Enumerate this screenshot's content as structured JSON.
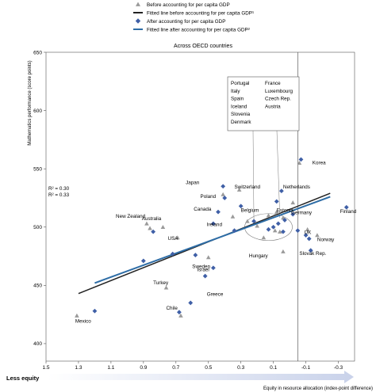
{
  "chart_data": {
    "type": "scatter",
    "title": "Across OECD countries",
    "xlabel": "Equity in resource allocation (index-point difference)",
    "ylabel": "Mathematics performance (score points)",
    "x_direction_label": "Less equity",
    "xlim": [
      1.5,
      -0.4
    ],
    "ylim": [
      385,
      650
    ],
    "x_ticks": [
      "1.5",
      "1.3",
      "1.1",
      "0.9",
      "0.7",
      "0.5",
      "0.3",
      "0.1",
      "-0.1",
      "-0.3"
    ],
    "y_ticks": [
      "400",
      "450",
      "500",
      "550",
      "600",
      "650"
    ],
    "grid": false,
    "legend": {
      "placement": "top-left",
      "entries": [
        {
          "label": "Before accounting for per capita GDP",
          "marker": "triangle"
        },
        {
          "label": "Fitted line before accounting for per capita GDP¹",
          "marker": "line-dark"
        },
        {
          "label": "After accounting for per capita GDP",
          "marker": "diamond"
        },
        {
          "label": "Fitted line after accounting for per capita GDP²",
          "marker": "line-blue"
        }
      ]
    },
    "r_squared": [
      "R² = 0.30",
      "R² = 0.33"
    ],
    "reference_lines": {
      "x": -0.05
    },
    "colors": {
      "before": "#9a9a9a",
      "after": "#3f5fa6",
      "fit_before": "#222222",
      "fit_after": "#2e6da6",
      "arrow": "#c6cfe6"
    },
    "series": [
      {
        "name": "Before accounting for per capita GDP",
        "marker": "triangle",
        "points": [
          {
            "x": 1.31,
            "y": 424
          },
          {
            "x": 0.67,
            "y": 424
          },
          {
            "x": 0.76,
            "y": 448
          },
          {
            "x": 0.5,
            "y": 474
          },
          {
            "x": 0.41,
            "y": 528
          },
          {
            "x": 0.88,
            "y": 503
          },
          {
            "x": 0.35,
            "y": 509
          },
          {
            "x": 0.31,
            "y": 532
          },
          {
            "x": 0.26,
            "y": 505
          },
          {
            "x": 0.2,
            "y": 501
          },
          {
            "x": 0.13,
            "y": 510
          },
          {
            "x": 0.09,
            "y": 497
          },
          {
            "x": 0.08,
            "y": 513
          },
          {
            "x": 0.06,
            "y": 496
          },
          {
            "x": 0.04,
            "y": 508
          },
          {
            "x": -0.02,
            "y": 521
          },
          {
            "x": -0.06,
            "y": 555
          },
          {
            "x": 0.04,
            "y": 479
          },
          {
            "x": 0.69,
            "y": 491
          },
          {
            "x": 0.78,
            "y": 500
          },
          {
            "x": 0.86,
            "y": 499
          },
          {
            "x": -0.11,
            "y": 498
          },
          {
            "x": -0.17,
            "y": 493
          },
          {
            "x": 0.16,
            "y": 491
          }
        ]
      },
      {
        "name": "After accounting for per capita GDP",
        "marker": "diamond",
        "points": [
          {
            "x": 1.2,
            "y": 428
          },
          {
            "x": 0.61,
            "y": 435
          },
          {
            "x": 0.68,
            "y": 427
          },
          {
            "x": 0.52,
            "y": 458
          },
          {
            "x": 0.47,
            "y": 465
          },
          {
            "x": 0.41,
            "y": 535
          },
          {
            "x": 0.84,
            "y": 496
          },
          {
            "x": 0.9,
            "y": 471
          },
          {
            "x": 0.72,
            "y": 477
          },
          {
            "x": 0.4,
            "y": 525
          },
          {
            "x": 0.44,
            "y": 513
          },
          {
            "x": 0.47,
            "y": 503
          },
          {
            "x": 0.3,
            "y": 518
          },
          {
            "x": 0.22,
            "y": 505
          },
          {
            "x": 0.08,
            "y": 522
          },
          {
            "x": 0.05,
            "y": 531
          },
          {
            "x": -0.07,
            "y": 558
          },
          {
            "x": 0.13,
            "y": 498
          },
          {
            "x": 0.1,
            "y": 500
          },
          {
            "x": 0.07,
            "y": 503
          },
          {
            "x": 0.03,
            "y": 506
          },
          {
            "x": -0.02,
            "y": 511
          },
          {
            "x": -0.35,
            "y": 517
          },
          {
            "x": -0.1,
            "y": 493
          },
          {
            "x": -0.12,
            "y": 490
          },
          {
            "x": -0.13,
            "y": 480
          },
          {
            "x": 0.34,
            "y": 497
          },
          {
            "x": 0.04,
            "y": 496
          },
          {
            "x": -0.05,
            "y": 497
          },
          {
            "x": 0.58,
            "y": 476
          }
        ]
      }
    ],
    "fitted_lines": [
      {
        "name": "Fitted line before accounting for per capita GDP¹",
        "points": [
          {
            "x": 1.3,
            "y": 443
          },
          {
            "x": -0.25,
            "y": 529
          }
        ]
      },
      {
        "name": "Fitted line after accounting for per capita GDP²",
        "points": [
          {
            "x": 1.2,
            "y": 452
          },
          {
            "x": -0.25,
            "y": 526
          }
        ]
      }
    ],
    "country_labels": [
      {
        "text": "Mexico",
        "x": 1.32,
        "y": 418
      },
      {
        "text": "Chile",
        "x": 0.76,
        "y": 429
      },
      {
        "text": "Turkey",
        "x": 0.84,
        "y": 451
      },
      {
        "text": "Greece",
        "x": 0.51,
        "y": 441
      },
      {
        "text": "Israel",
        "x": 0.57,
        "y": 462
      },
      {
        "text": "Sweden",
        "x": 0.6,
        "y": 465
      },
      {
        "text": "USA",
        "x": 0.75,
        "y": 489
      },
      {
        "text": "New Zealand",
        "x": 1.07,
        "y": 508
      },
      {
        "text": "Australia",
        "x": 0.91,
        "y": 506
      },
      {
        "text": "Ireland",
        "x": 0.51,
        "y": 501
      },
      {
        "text": "Canada",
        "x": 0.59,
        "y": 514
      },
      {
        "text": "Japan",
        "x": 0.64,
        "y": 537
      },
      {
        "text": "Poland",
        "x": 0.55,
        "y": 525
      },
      {
        "text": "Switzerland",
        "x": 0.34,
        "y": 533
      },
      {
        "text": "Belgium",
        "x": 0.3,
        "y": 513
      },
      {
        "text": "Estonia",
        "x": 0.08,
        "y": 513
      },
      {
        "text": "Netherlands",
        "x": 0.04,
        "y": 533
      },
      {
        "text": "Germany",
        "x": -0.01,
        "y": 511
      },
      {
        "text": "Korea",
        "x": -0.14,
        "y": 554
      },
      {
        "text": "Finland",
        "x": -0.31,
        "y": 512
      },
      {
        "text": "UK",
        "x": -0.09,
        "y": 494
      },
      {
        "text": "Norway",
        "x": -0.17,
        "y": 488
      },
      {
        "text": "Slovak Rep.",
        "x": -0.06,
        "y": 476
      },
      {
        "text": "Hungary",
        "x": 0.25,
        "y": 474
      }
    ],
    "callout_box": {
      "columns": [
        [
          "Portugal",
          "Italy",
          "Spain",
          "Iceland",
          "Slovenia",
          "Denmark"
        ],
        [
          "France",
          "Luxembourg",
          "Czech Rep.",
          "Austria"
        ]
      ]
    }
  }
}
